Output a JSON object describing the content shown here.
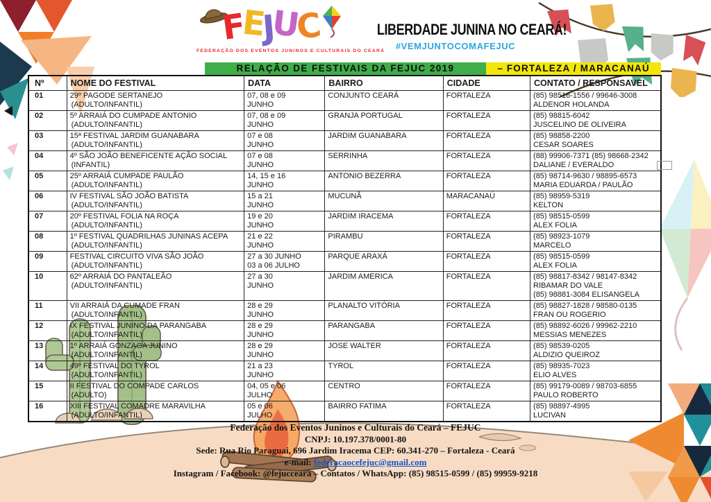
{
  "header": {
    "logo": {
      "letters": [
        {
          "ch": "F",
          "color": "#e8282b"
        },
        {
          "ch": "E",
          "color": "#f2b824"
        },
        {
          "ch": "J",
          "color": "#7b68c8"
        },
        {
          "ch": "U",
          "color": "#c565c9"
        },
        {
          "ch": "C",
          "color": "#f08326"
        }
      ],
      "tagline": "FEDERAÇÃO DOS EVENTOS JUNINOS E CULTURAIS DO CEARÁ"
    },
    "slogan": "LIBERDADE JUNINA NO CEARÁ!",
    "hashtag": "#VEMJUNTOCOMAFEJUC",
    "hashtag_color": "#2ba7df"
  },
  "title_bar": {
    "green_text": "RELAÇÃO DE FESTIVAIS DA FEJUC 2019",
    "yellow_text": "– FORTALEZA / MARACANAÚ",
    "green_bg": "#3fae49",
    "yellow_bg": "#f2e60a"
  },
  "table": {
    "columns": [
      "Nº",
      "NOME DO FESTIVAL",
      "DATA",
      "BAIRRO",
      "CIDADE",
      "CONTATO / RESPONSAVEL"
    ],
    "rows": [
      {
        "num": "01",
        "name": "29º PAGODE SERTANEJO",
        "type": "(ADULTO/INFANTIL)",
        "date1": "07, 08 e 09",
        "date2": "JUNHO",
        "bairro": "CONJUNTO CEARÁ",
        "cidade": "FORTALEZA",
        "contact": [
          "(85) 98516-1556 / 99646-3008",
          "ALDENOR HOLANDA"
        ]
      },
      {
        "num": "02",
        "name": "5º ARRAIÁ DO CUMPADE ANTONIO",
        "type": "(ADULTO/INFANTIL)",
        "date1": "07, 08 e 09",
        "date2": "JUNHO",
        "bairro": "GRANJA PORTUGAL",
        "cidade": "FORTALEZA",
        "contact": [
          "(85) 98815-6042",
          "JUSCELINO DE OLIVEIRA"
        ]
      },
      {
        "num": "03",
        "name": "15ª FESTIVAL JARDIM GUANABARA",
        "type": "(ADULTO/INFANTIL)",
        "date1": "07 e 08",
        "date2": "JUNHO",
        "bairro": "JARDIM GUANABARA",
        "cidade": "FORTALEZA",
        "contact": [
          "(85) 98858-2200",
          "CESAR SOARES"
        ]
      },
      {
        "num": "04",
        "name": "4º SÃO JOÃO BENEFICENTE AÇÃO SOCIAL",
        "type": "(INFANTIL)",
        "date1": "07 e 08",
        "date2": "JUNHO",
        "bairro": "SERRINHA",
        "cidade": "FORTALEZA",
        "contact": [
          "(88) 99906-7371 (85) 98668-2342",
          "DALIANE / EVERALDO"
        ]
      },
      {
        "num": "05",
        "name": "25º ARRAIÁ CUMPADE PAULÃO",
        "type": "(ADULTO/INFANTIL)",
        "date1": "14, 15 e 16",
        "date2": "JUNHO",
        "bairro": "ANTONIO BEZERRA",
        "cidade": "FORTALEZA",
        "contact": [
          "(85) 98714-9630 / 98895-6573",
          "MARIA EDUARDA / PAULÃO"
        ]
      },
      {
        "num": "06",
        "name": "IV FESTIVAL SÃO JOÃO BATISTA",
        "type": "(ADULTO/INFANTIL)",
        "date1": "15 a 21",
        "date2": "JUNHO",
        "bairro": "MUCUNÃ",
        "cidade": "MARACANAÚ",
        "contact": [
          "(85) 98959-5319",
          "KELTON"
        ]
      },
      {
        "num": "07",
        "name": "20º FESTIVAL FOLIA NA ROÇA",
        "type": "(ADULTO/INFANTIL)",
        "date1": "19 e 20",
        "date2": "JUNHO",
        "bairro": "JARDIM IRACEMA",
        "cidade": "FORTALEZA",
        "contact": [
          "(85) 98515-0599",
          "ALEX FOLIA"
        ]
      },
      {
        "num": "08",
        "name": "1º FESTIVAL QUADRILHAS JUNINAS ACEPA",
        "type": "(ADULTO/INFANTIL)",
        "date1": "21 e 22",
        "date2": "JUNHO",
        "bairro": "PIRAMBU",
        "cidade": "FORTALEZA",
        "contact": [
          "(85) 98923-1079",
          "MARCELO"
        ]
      },
      {
        "num": "09",
        "name": "FESTIVAL CIRCUITO VIVA SÃO JOÃO",
        "type": "(ADULTO/INFANTIL)",
        "date1": "27 a 30 JUNHO",
        "date2": "03 a 06 JULHO",
        "bairro": "PARQUE ARAXÁ",
        "cidade": "FORTALEZA",
        "contact": [
          "(85) 98515-0599",
          "ALEX FOLIA"
        ]
      },
      {
        "num": "10",
        "name": "62º ARRAIÁ DO PANTALEÃO",
        "type": "(ADULTO/INFANTIL)",
        "date1": "27 a 30",
        "date2": "JUNHO",
        "bairro": "JARDIM AMERICA",
        "cidade": "FORTALEZA",
        "contact": [
          "(85) 98817-8342 / 98147-8342",
          "RIBAMAR DO VALE",
          "(85) 98881-3084 ELISANGELA"
        ]
      },
      {
        "num": "11",
        "name": "VII ARRAIÁ DA CUMADE FRAN",
        "type": "(ADULTO/INFANTIL)",
        "date1": "28 e 29",
        "date2": "JUNHO",
        "bairro": "PLANALTO VITÓRIA",
        "cidade": "FORTALEZA",
        "contact": [
          "(85) 98827-1828 / 98580-0135",
          "FRAN OU ROGERIO"
        ]
      },
      {
        "num": "12",
        "name": "IX FESTIVAL JUNINO DA PARANGABA",
        "type": "(ADULTO/INFANTIL)",
        "date1": "28 e 29",
        "date2": "JUNHO",
        "bairro": "PARANGABA",
        "cidade": "FORTALEZA",
        "contact": [
          "(85) 98892-6026 / 99962-2210",
          "MESSIAS MENEZES"
        ]
      },
      {
        "num": "13",
        "name": "1º ARRAIÁ GONZAGA JUNINO",
        "type": "(ADULTO/INFANTIL)",
        "date1": "28 e 29",
        "date2": "JUNHO",
        "bairro": "JOSE WALTER",
        "cidade": "FORTALEZA",
        "contact": [
          "(85) 98539-0205",
          "ALDIZIO QUEIROZ"
        ]
      },
      {
        "num": "14",
        "name": "49º FESTIVAL DO TYROL",
        "type": "(ADULTO/INFANTIL)",
        "date1": "21 a 23",
        "date2": "JUNHO",
        "bairro": "TYROL",
        "cidade": "FORTALEZA",
        "contact": [
          "(85) 98935-7023",
          "ELIO ALVES"
        ]
      },
      {
        "num": "15",
        "name": "II FESTIVAL DO COMPADE CARLOS",
        "type": "(ADULTO)",
        "date1": "04, 05 e 06",
        "date2": "JULHO",
        "bairro": "CENTRO",
        "cidade": "FORTALEZA",
        "contact": [
          "(85) 99179-0089 / 98703-6855",
          "PAULO ROBERTO"
        ]
      },
      {
        "num": "16",
        "name": "XIII FESTIVAL COMADRE MARAVILHA",
        "type": "(ADULTO/INFANTIL)",
        "date1": "05 e 06",
        "date2": "JULHO",
        "bairro": "BAIRRO FATIMA",
        "cidade": "FORTALEZA",
        "contact": [
          "(85) 98897-4995",
          "LUCIVAN"
        ]
      }
    ]
  },
  "footer": {
    "line1": "Federação dos Eventos Juninos e Culturais do Ceará – FEJUC",
    "line2": "CNPJ: 10.197.378/0001-80",
    "line3": "Sede: Rua Rio Paraguai, 696 Jardim Iracema  CEP: 60.341-270 – Fortaleza - Ceará",
    "line4_label": "e-mail: ",
    "email": "federacaocefejuc@gmail.com",
    "line5": "Instagram / Facebook: @fejucceara – Contatos / WhatsApp: (85) 98515-0599 / (85) 99959-9218"
  }
}
